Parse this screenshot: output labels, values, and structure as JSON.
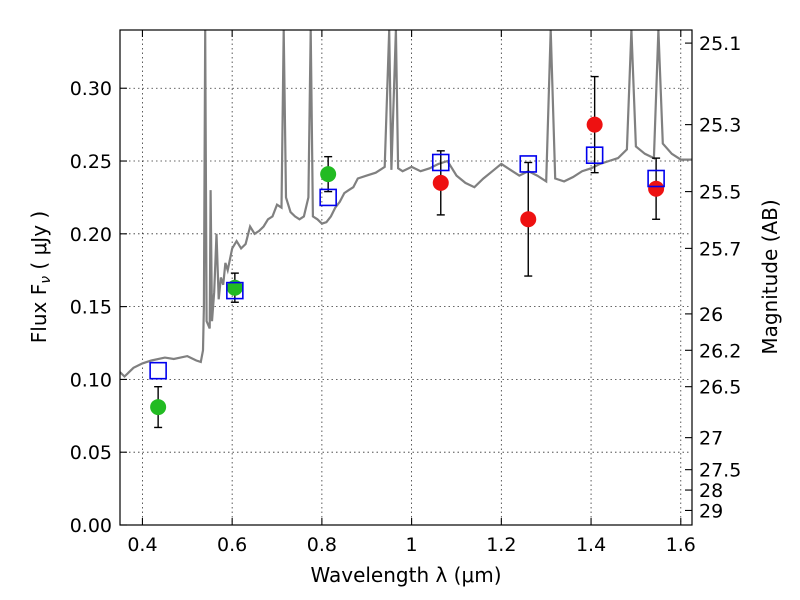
{
  "chart_data": {
    "type": "scatter",
    "xlabel": "Wavelength  λ (μm)",
    "ylabel": "Flux  F",
    "ylabel_sub": "ν",
    "ylabel_unit": "  ( μJy )",
    "ylabel_right": "Magnitude (AB)",
    "xlim": [
      0.35,
      1.625
    ],
    "ylim": [
      0.0,
      0.34
    ],
    "grid": true,
    "x_ticks": [
      0.4,
      0.6,
      0.8,
      1.0,
      1.2,
      1.4,
      1.6
    ],
    "x_tick_labels": [
      "0.4",
      "0.6",
      "0.8",
      "1",
      "1.2",
      "1.4",
      "1.6"
    ],
    "y_ticks": [
      0.0,
      0.05,
      0.1,
      0.15,
      0.2,
      0.25,
      0.3
    ],
    "y_tick_labels": [
      "0.00",
      "0.05",
      "0.10",
      "0.15",
      "0.20",
      "0.25",
      "0.30"
    ],
    "right_ticks": [
      {
        "flux": 0.331,
        "label": "25.1"
      },
      {
        "flux": 0.275,
        "label": "25.3"
      },
      {
        "flux": 0.229,
        "label": "25.5"
      },
      {
        "flux": 0.19,
        "label": "25.7"
      },
      {
        "flux": 0.145,
        "label": "26"
      },
      {
        "flux": 0.12,
        "label": "26.2"
      },
      {
        "flux": 0.095,
        "label": "26.5"
      },
      {
        "flux": 0.06,
        "label": "27"
      },
      {
        "flux": 0.038,
        "label": "27.5"
      },
      {
        "flux": 0.024,
        "label": "28"
      },
      {
        "flux": 0.01,
        "label": "29"
      }
    ],
    "colors": {
      "model": "#808080",
      "green": "#22bb22",
      "red": "#ee1111",
      "square": "#0000ee",
      "errorbar": "#000000"
    },
    "series": [
      {
        "marker": "circle",
        "color": "#22bb22",
        "points": [
          {
            "x": 0.435,
            "y": 0.081,
            "err": 0.014
          },
          {
            "x": 0.606,
            "y": 0.163,
            "err": 0.01
          },
          {
            "x": 0.814,
            "y": 0.241,
            "err": 0.012
          }
        ]
      },
      {
        "marker": "circle",
        "color": "#ee1111",
        "points": [
          {
            "x": 1.065,
            "y": 0.235,
            "err": 0.022
          },
          {
            "x": 1.26,
            "y": 0.21,
            "err": 0.039
          },
          {
            "x": 1.408,
            "y": 0.275,
            "err": 0.033
          },
          {
            "x": 1.545,
            "y": 0.231,
            "err": 0.021
          }
        ]
      },
      {
        "marker": "square",
        "color": "#0000ee",
        "points": [
          {
            "x": 0.435,
            "y": 0.106
          },
          {
            "x": 0.606,
            "y": 0.161
          },
          {
            "x": 0.814,
            "y": 0.225
          },
          {
            "x": 1.065,
            "y": 0.249
          },
          {
            "x": 1.26,
            "y": 0.248
          },
          {
            "x": 1.408,
            "y": 0.254
          },
          {
            "x": 1.545,
            "y": 0.238
          }
        ]
      }
    ],
    "model_spectrum": [
      [
        0.35,
        0.105
      ],
      [
        0.36,
        0.102
      ],
      [
        0.38,
        0.108
      ],
      [
        0.4,
        0.111
      ],
      [
        0.42,
        0.113
      ],
      [
        0.45,
        0.115
      ],
      [
        0.47,
        0.114
      ],
      [
        0.5,
        0.116
      ],
      [
        0.52,
        0.113
      ],
      [
        0.53,
        0.112
      ],
      [
        0.535,
        0.12
      ],
      [
        0.537,
        0.15
      ],
      [
        0.54,
        0.34
      ],
      [
        0.543,
        0.14
      ],
      [
        0.55,
        0.135
      ],
      [
        0.552,
        0.23
      ],
      [
        0.555,
        0.14
      ],
      [
        0.56,
        0.16
      ],
      [
        0.565,
        0.2
      ],
      [
        0.57,
        0.155
      ],
      [
        0.575,
        0.17
      ],
      [
        0.58,
        0.165
      ],
      [
        0.585,
        0.18
      ],
      [
        0.59,
        0.175
      ],
      [
        0.6,
        0.19
      ],
      [
        0.61,
        0.195
      ],
      [
        0.62,
        0.19
      ],
      [
        0.63,
        0.193
      ],
      [
        0.64,
        0.205
      ],
      [
        0.65,
        0.2
      ],
      [
        0.66,
        0.202
      ],
      [
        0.67,
        0.205
      ],
      [
        0.68,
        0.21
      ],
      [
        0.69,
        0.212
      ],
      [
        0.7,
        0.22
      ],
      [
        0.71,
        0.218
      ],
      [
        0.715,
        0.34
      ],
      [
        0.72,
        0.225
      ],
      [
        0.73,
        0.215
      ],
      [
        0.74,
        0.212
      ],
      [
        0.75,
        0.21
      ],
      [
        0.76,
        0.212
      ],
      [
        0.77,
        0.225
      ],
      [
        0.775,
        0.34
      ],
      [
        0.78,
        0.212
      ],
      [
        0.79,
        0.21
      ],
      [
        0.8,
        0.207
      ],
      [
        0.81,
        0.208
      ],
      [
        0.82,
        0.212
      ],
      [
        0.83,
        0.218
      ],
      [
        0.84,
        0.222
      ],
      [
        0.85,
        0.228
      ],
      [
        0.86,
        0.23
      ],
      [
        0.87,
        0.232
      ],
      [
        0.88,
        0.238
      ],
      [
        0.9,
        0.24
      ],
      [
        0.92,
        0.242
      ],
      [
        0.94,
        0.246
      ],
      [
        0.95,
        0.34
      ],
      [
        0.955,
        0.244
      ],
      [
        0.965,
        0.34
      ],
      [
        0.97,
        0.245
      ],
      [
        0.98,
        0.243
      ],
      [
        1.0,
        0.246
      ],
      [
        1.02,
        0.243
      ],
      [
        1.04,
        0.245
      ],
      [
        1.06,
        0.248
      ],
      [
        1.08,
        0.25
      ],
      [
        1.1,
        0.24
      ],
      [
        1.12,
        0.235
      ],
      [
        1.14,
        0.232
      ],
      [
        1.16,
        0.238
      ],
      [
        1.18,
        0.243
      ],
      [
        1.2,
        0.248
      ],
      [
        1.22,
        0.244
      ],
      [
        1.24,
        0.24
      ],
      [
        1.26,
        0.243
      ],
      [
        1.28,
        0.24
      ],
      [
        1.3,
        0.236
      ],
      [
        1.31,
        0.34
      ],
      [
        1.32,
        0.238
      ],
      [
        1.34,
        0.236
      ],
      [
        1.36,
        0.239
      ],
      [
        1.38,
        0.243
      ],
      [
        1.4,
        0.245
      ],
      [
        1.42,
        0.248
      ],
      [
        1.44,
        0.25
      ],
      [
        1.46,
        0.252
      ],
      [
        1.48,
        0.258
      ],
      [
        1.49,
        0.34
      ],
      [
        1.5,
        0.26
      ],
      [
        1.52,
        0.255
      ],
      [
        1.54,
        0.252
      ],
      [
        1.55,
        0.34
      ],
      [
        1.56,
        0.262
      ],
      [
        1.58,
        0.255
      ],
      [
        1.6,
        0.251
      ],
      [
        1.625,
        0.251
      ]
    ]
  }
}
